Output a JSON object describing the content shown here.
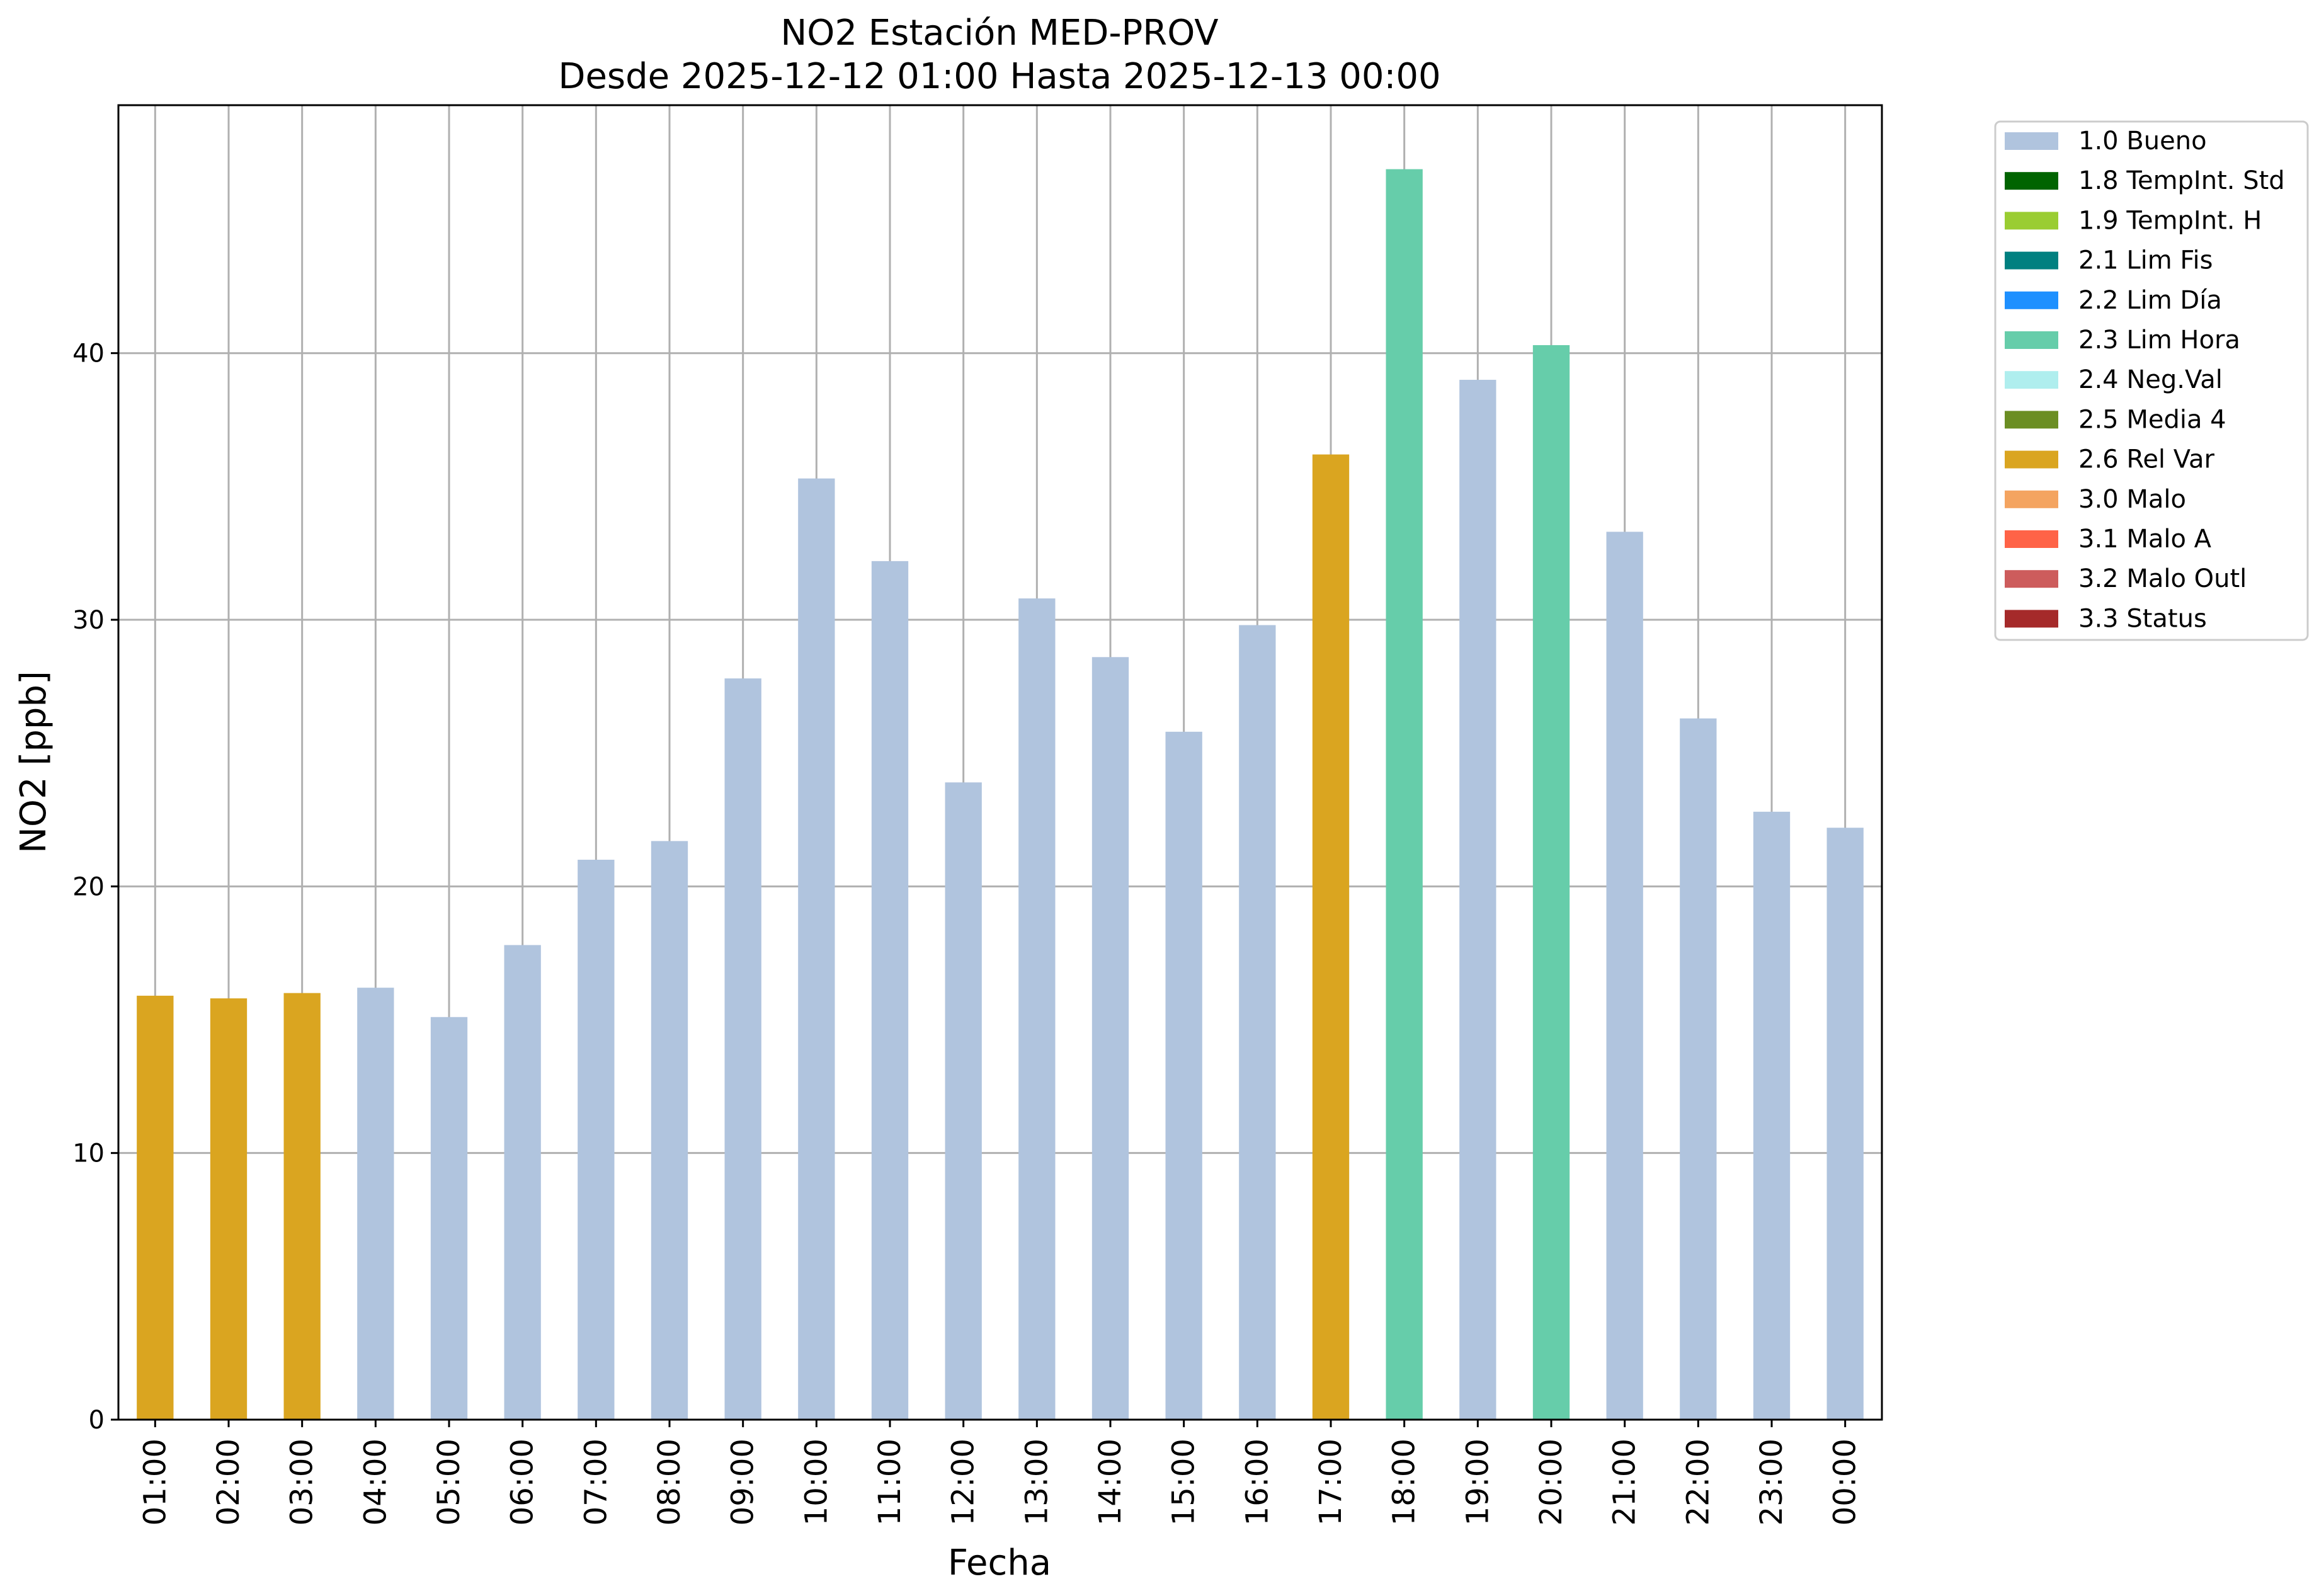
{
  "chart_data": {
    "type": "bar",
    "title": "NO2 Estación MED-PROV",
    "subtitle": "Desde 2025-12-12 01:00 Hasta 2025-12-13 00:00",
    "xlabel": "Fecha",
    "ylabel": "NO2 [ppb]",
    "ylim": [
      0,
      49.3
    ],
    "yticks": [
      0,
      10,
      20,
      30,
      40
    ],
    "grid": true,
    "legend_position": "outside-top-right",
    "categories": [
      "01:00",
      "02:00",
      "03:00",
      "04:00",
      "05:00",
      "06:00",
      "07:00",
      "08:00",
      "09:00",
      "10:00",
      "11:00",
      "12:00",
      "13:00",
      "14:00",
      "15:00",
      "16:00",
      "17:00",
      "18:00",
      "19:00",
      "20:00",
      "21:00",
      "22:00",
      "23:00",
      "00:00"
    ],
    "values": [
      15.9,
      15.8,
      16.0,
      16.2,
      15.1,
      17.8,
      21.0,
      21.7,
      27.8,
      35.3,
      32.2,
      23.9,
      30.8,
      28.6,
      25.8,
      29.8,
      36.2,
      46.9,
      39.0,
      40.3,
      33.3,
      26.3,
      22.8,
      22.2
    ],
    "flags": [
      "2.6 Rel Var",
      "2.6 Rel Var",
      "2.6 Rel Var",
      "1.0 Bueno",
      "1.0 Bueno",
      "1.0 Bueno",
      "1.0 Bueno",
      "1.0 Bueno",
      "1.0 Bueno",
      "1.0 Bueno",
      "1.0 Bueno",
      "1.0 Bueno",
      "1.0 Bueno",
      "1.0 Bueno",
      "1.0 Bueno",
      "1.0 Bueno",
      "2.6 Rel Var",
      "2.3 Lim Hora",
      "1.0 Bueno",
      "2.3 Lim Hora",
      "1.0 Bueno",
      "1.0 Bueno",
      "1.0 Bueno",
      "1.0 Bueno"
    ],
    "legend": [
      {
        "label": "1.0 Bueno",
        "color": "#b0c4de"
      },
      {
        "label": "1.8 TempInt. Std",
        "color": "#006400"
      },
      {
        "label": "1.9 TempInt. H",
        "color": "#9acd32"
      },
      {
        "label": "2.1 Lim Fis",
        "color": "#008080"
      },
      {
        "label": "2.2 Lim Día",
        "color": "#1e90ff"
      },
      {
        "label": "2.3 Lim Hora",
        "color": "#66cdaa"
      },
      {
        "label": "2.4 Neg.Val",
        "color": "#afeeee"
      },
      {
        "label": "2.5 Media 4",
        "color": "#6b8e23"
      },
      {
        "label": "2.6 Rel Var",
        "color": "#daa520"
      },
      {
        "label": "3.0 Malo",
        "color": "#f4a460"
      },
      {
        "label": "3.1 Malo A",
        "color": "#ff6347"
      },
      {
        "label": "3.2 Malo Outl",
        "color": "#cd5c5c"
      },
      {
        "label": "3.3 Status",
        "color": "#a52a2a"
      }
    ]
  }
}
